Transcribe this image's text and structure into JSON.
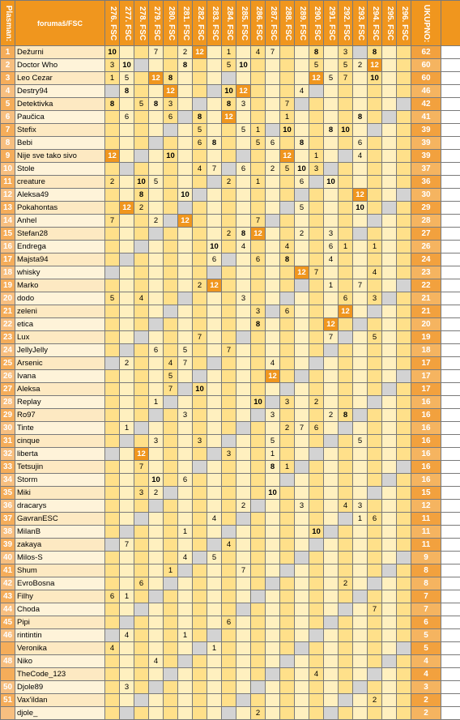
{
  "header": {
    "rank_label": "Plasman:",
    "name_label": "forumaš/FSC",
    "columns": [
      "276. FSC",
      "277. FSC",
      "278. FSC",
      "279. FSC",
      "280. FSC",
      "281. FSC",
      "282. FSC",
      "283. FSC",
      "284. FSC",
      "285. FSC",
      "286. FSC",
      "287. FSC",
      "288. FSC",
      "289. FSC",
      "290. FSC",
      "291. FSC",
      "292. FSC",
      "293. FSC",
      "294. FSC",
      "295. FSC",
      "296. FSC"
    ],
    "total_label": "UKUPNO:"
  },
  "rows": [
    {
      "rank": "1",
      "name": "Dežurni",
      "cells": [
        "10",
        "",
        "",
        "7",
        "",
        "2",
        "12",
        "",
        "1",
        "",
        "4",
        "7",
        "",
        "",
        "8",
        "",
        "3",
        "",
        "8",
        "",
        ""
      ],
      "total": "62"
    },
    {
      "rank": "2",
      "name": "Doctor Who",
      "cells": [
        "3",
        "10",
        "",
        "",
        "",
        "8",
        "",
        "",
        "5",
        "10",
        "",
        "",
        "",
        "",
        "5",
        "",
        "5",
        "2",
        "12",
        "",
        ""
      ],
      "total": "60"
    },
    {
      "rank": "3",
      "name": "Leo Cezar",
      "cells": [
        "1",
        "5",
        "",
        "12",
        "8",
        "",
        "",
        "",
        "",
        "",
        "",
        "",
        "",
        "",
        "12",
        "5",
        "7",
        "",
        "10",
        "",
        ""
      ],
      "total": "60"
    },
    {
      "rank": "4",
      "name": "Destry94",
      "cells": [
        "",
        "8",
        "",
        "",
        "12",
        "",
        "",
        "",
        "10",
        "12",
        "",
        "",
        "",
        "4",
        "",
        "",
        "",
        "",
        "",
        "",
        ""
      ],
      "total": "46"
    },
    {
      "rank": "5",
      "name": "Detektivka",
      "cells": [
        "8",
        "",
        "5",
        "8",
        "3",
        "",
        "",
        "",
        "8",
        "3",
        "",
        "",
        "7",
        "",
        "",
        "",
        "",
        "",
        "",
        "",
        ""
      ],
      "total": "42"
    },
    {
      "rank": "6",
      "name": "Paučica",
      "cells": [
        "",
        "6",
        "",
        "",
        "6",
        "",
        "8",
        "",
        "12",
        "",
        "",
        "",
        "1",
        "",
        "",
        "",
        "",
        "8",
        "",
        "",
        ""
      ],
      "total": "41"
    },
    {
      "rank": "7",
      "name": "Stefix",
      "cells": [
        "",
        "",
        "",
        "",
        "",
        "",
        "5",
        "",
        "",
        "5",
        "1",
        "",
        "10",
        "",
        "",
        "8",
        "10",
        "",
        "",
        "",
        ""
      ],
      "total": "39"
    },
    {
      "rank": "8",
      "name": "Bebi",
      "cells": [
        "",
        "",
        "",
        "",
        "",
        "",
        "6",
        "8",
        "",
        "",
        "5",
        "6",
        "",
        "8",
        "",
        "",
        "",
        "6",
        "",
        "",
        ""
      ],
      "total": "39"
    },
    {
      "rank": "9",
      "name": "Nije sve tako sivo",
      "cells": [
        "12",
        "",
        "",
        "",
        "10",
        "",
        "",
        "",
        "",
        "",
        "",
        "",
        "12",
        "",
        "1",
        "",
        "",
        "4",
        "",
        "",
        ""
      ],
      "total": "39"
    },
    {
      "rank": "10",
      "name": "Stole",
      "cells": [
        "",
        "",
        "",
        "",
        "",
        "",
        "4",
        "7",
        "",
        "6",
        "",
        "2",
        "5",
        "10",
        "3",
        "",
        "",
        "",
        "",
        "",
        ""
      ],
      "total": "37"
    },
    {
      "rank": "11",
      "name": "creature",
      "cells": [
        "2",
        "",
        "10",
        "5",
        "",
        "",
        "",
        "",
        "2",
        "",
        "1",
        "",
        "",
        "6",
        "",
        "10",
        "",
        "",
        "",
        "",
        ""
      ],
      "total": "36"
    },
    {
      "rank": "12",
      "name": "Aleksa49",
      "cells": [
        "",
        "",
        "8",
        "",
        "",
        "10",
        "",
        "",
        "",
        "",
        "",
        "",
        "",
        "",
        "",
        "",
        "",
        "12",
        "",
        "",
        ""
      ],
      "total": "30"
    },
    {
      "rank": "13",
      "name": "Pokahontas",
      "cells": [
        "",
        "12",
        "2",
        "",
        "",
        "",
        "",
        "",
        "",
        "",
        "",
        "",
        "",
        "5",
        "",
        "",
        "",
        "10",
        "",
        "",
        ""
      ],
      "total": "29"
    },
    {
      "rank": "14",
      "name": "Anhel",
      "cells": [
        "7",
        "",
        "",
        "2",
        "",
        "12",
        "",
        "",
        "",
        "",
        "7",
        "",
        "",
        "",
        "",
        "",
        "",
        "",
        "",
        "",
        ""
      ],
      "total": "28"
    },
    {
      "rank": "15",
      "name": "Stefan28",
      "cells": [
        "",
        "",
        "",
        "",
        "",
        "",
        "",
        "",
        "2",
        "8",
        "12",
        "",
        "",
        "2",
        "",
        "3",
        "",
        "",
        "",
        "",
        ""
      ],
      "total": "27"
    },
    {
      "rank": "16",
      "name": "Endrega",
      "cells": [
        "",
        "",
        "",
        "",
        "",
        "",
        "",
        "10",
        "",
        "4",
        "",
        "",
        "4",
        "",
        "",
        "6",
        "1",
        "",
        "1",
        "",
        ""
      ],
      "total": "26"
    },
    {
      "rank": "17",
      "name": "Majsta94",
      "cells": [
        "",
        "",
        "",
        "",
        "",
        "",
        "",
        "6",
        "",
        "",
        "6",
        "",
        "8",
        "",
        "",
        "4",
        "",
        "",
        "",
        "",
        ""
      ],
      "total": "24"
    },
    {
      "rank": "18",
      "name": "whisky",
      "cells": [
        "",
        "",
        "",
        "",
        "",
        "",
        "",
        "",
        "",
        "",
        "",
        "",
        "",
        "12",
        "7",
        "",
        "",
        "",
        "4",
        "",
        ""
      ],
      "total": "23"
    },
    {
      "rank": "19",
      "name": "Marko",
      "cells": [
        "",
        "",
        "",
        "",
        "",
        "",
        "2",
        "12",
        "",
        "",
        "",
        "",
        "",
        "",
        "",
        "1",
        "",
        "7",
        "",
        "",
        ""
      ],
      "total": "22"
    },
    {
      "rank": "20",
      "name": "dodo",
      "cells": [
        "5",
        "",
        "4",
        "",
        "",
        "",
        "",
        "",
        "",
        "3",
        "",
        "",
        "",
        "",
        "",
        "",
        "6",
        "",
        "3",
        "",
        ""
      ],
      "total": "21"
    },
    {
      "rank": "21",
      "name": "zeleni",
      "cells": [
        "",
        "",
        "",
        "",
        "",
        "",
        "",
        "",
        "",
        "",
        "3",
        "",
        "6",
        "",
        "",
        "",
        "12",
        "",
        "",
        "",
        ""
      ],
      "total": "21"
    },
    {
      "rank": "22",
      "name": "etica",
      "cells": [
        "",
        "",
        "",
        "",
        "",
        "",
        "",
        "",
        "",
        "",
        "8",
        "",
        "",
        "",
        "",
        "12",
        "",
        "",
        "",
        "",
        ""
      ],
      "total": "20"
    },
    {
      "rank": "23",
      "name": "Lux",
      "cells": [
        "",
        "",
        "",
        "",
        "",
        "",
        "7",
        "",
        "",
        "",
        "",
        "",
        "",
        "",
        "",
        "7",
        "",
        "",
        "5",
        "",
        ""
      ],
      "total": "19"
    },
    {
      "rank": "24",
      "name": "JellyJelly",
      "cells": [
        "",
        "",
        "",
        "6",
        "",
        "5",
        "",
        "",
        "7",
        "",
        "",
        "",
        "",
        "",
        "",
        "",
        "",
        "",
        "",
        "",
        ""
      ],
      "total": "18"
    },
    {
      "rank": "25",
      "name": "Arsenic",
      "cells": [
        "",
        "2",
        "",
        "",
        "4",
        "7",
        "",
        "",
        "",
        "",
        "",
        "4",
        "",
        "",
        "",
        "",
        "",
        "",
        "",
        "",
        ""
      ],
      "total": "17"
    },
    {
      "rank": "26",
      "name": "Ivana",
      "cells": [
        "",
        "",
        "",
        "",
        "5",
        "",
        "",
        "",
        "",
        "",
        "",
        "12",
        "",
        "",
        "",
        "",
        "",
        "",
        "",
        "",
        ""
      ],
      "total": "17"
    },
    {
      "rank": "27",
      "name": "Aleksa",
      "cells": [
        "",
        "",
        "",
        "",
        "7",
        "",
        "10",
        "",
        "",
        "",
        "",
        "",
        "",
        "",
        "",
        "",
        "",
        "",
        "",
        "",
        ""
      ],
      "total": "17"
    },
    {
      "rank": "28",
      "name": "Replay",
      "cells": [
        "",
        "",
        "",
        "1",
        "",
        "",
        "",
        "",
        "",
        "",
        "10",
        "",
        "3",
        "",
        "2",
        "",
        "",
        "",
        "",
        "",
        ""
      ],
      "total": "16"
    },
    {
      "rank": "29",
      "name": "Ro97",
      "cells": [
        "",
        "",
        "",
        "",
        "",
        "3",
        "",
        "",
        "",
        "",
        "",
        "3",
        "",
        "",
        "",
        "2",
        "8",
        "",
        "",
        "",
        ""
      ],
      "total": "16"
    },
    {
      "rank": "30",
      "name": "Tinte",
      "cells": [
        "",
        "1",
        "",
        "",
        "",
        "",
        "",
        "",
        "",
        "",
        "",
        "",
        "2",
        "7",
        "6",
        "",
        "",
        "",
        "",
        "",
        ""
      ],
      "total": "16"
    },
    {
      "rank": "31",
      "name": "cinque",
      "cells": [
        "",
        "",
        "",
        "3",
        "",
        "",
        "3",
        "",
        "",
        "",
        "",
        "5",
        "",
        "",
        "",
        "",
        "",
        "5",
        "",
        "",
        ""
      ],
      "total": "16"
    },
    {
      "rank": "32",
      "name": "liberta",
      "cells": [
        "",
        "",
        "12",
        "",
        "",
        "",
        "",
        "",
        "3",
        "",
        "",
        "1",
        "",
        "",
        "",
        "",
        "",
        "",
        "",
        "",
        ""
      ],
      "total": "16"
    },
    {
      "rank": "33",
      "name": "Tetsujin",
      "cells": [
        "",
        "",
        "7",
        "",
        "",
        "",
        "",
        "",
        "",
        "",
        "",
        "8",
        "1",
        "",
        "",
        "",
        "",
        "",
        "",
        "",
        ""
      ],
      "total": "16"
    },
    {
      "rank": "34",
      "name": "Storm",
      "cells": [
        "",
        "",
        "",
        "10",
        "",
        "6",
        "",
        "",
        "",
        "",
        "",
        "",
        "",
        "",
        "",
        "",
        "",
        "",
        "",
        "",
        ""
      ],
      "total": "16"
    },
    {
      "rank": "35",
      "name": "Miki",
      "cells": [
        "",
        "",
        "3",
        "2",
        "",
        "",
        "",
        "",
        "",
        "",
        "",
        "10",
        "",
        "",
        "",
        "",
        "",
        "",
        "",
        "",
        ""
      ],
      "total": "15"
    },
    {
      "rank": "36",
      "name": "dracarys",
      "cells": [
        "",
        "",
        "",
        "",
        "",
        "",
        "",
        "",
        "",
        "2",
        "",
        "",
        "",
        "3",
        "",
        "",
        "4",
        "3",
        "",
        "",
        ""
      ],
      "total": "12"
    },
    {
      "rank": "37",
      "name": "GavranESC",
      "cells": [
        "",
        "",
        "",
        "",
        "",
        "",
        "",
        "4",
        "",
        "",
        "",
        "",
        "",
        "",
        "",
        "",
        "",
        "1",
        "6",
        "",
        ""
      ],
      "total": "11"
    },
    {
      "rank": "38",
      "name": "MilanB",
      "cells": [
        "",
        "",
        "",
        "",
        "",
        "1",
        "",
        "",
        "",
        "",
        "",
        "",
        "",
        "",
        "10",
        "",
        "",
        "",
        "",
        "",
        ""
      ],
      "total": "11"
    },
    {
      "rank": "39",
      "name": "zakaya",
      "cells": [
        "",
        "7",
        "",
        "",
        "",
        "",
        "",
        "",
        "4",
        "",
        "",
        "",
        "",
        "",
        "",
        "",
        "",
        "",
        "",
        "",
        ""
      ],
      "total": "11"
    },
    {
      "rank": "40",
      "name": "Milos-S",
      "cells": [
        "",
        "",
        "",
        "",
        "",
        "4",
        "",
        "5",
        "",
        "",
        "",
        "",
        "",
        "",
        "",
        "",
        "",
        "",
        "",
        "",
        ""
      ],
      "total": "9"
    },
    {
      "rank": "41",
      "name": "Shum",
      "cells": [
        "",
        "",
        "",
        "",
        "1",
        "",
        "",
        "",
        "",
        "7",
        "",
        "",
        "",
        "",
        "",
        "",
        "",
        "",
        "",
        "",
        ""
      ],
      "total": "8"
    },
    {
      "rank": "42",
      "name": "EvroBosna",
      "cells": [
        "",
        "",
        "6",
        "",
        "",
        "",
        "",
        "",
        "",
        "",
        "",
        "",
        "",
        "",
        "",
        "",
        "2",
        "",
        "",
        "",
        ""
      ],
      "total": "8"
    },
    {
      "rank": "43",
      "name": "Filhy",
      "cells": [
        "6",
        "1",
        "",
        "",
        "",
        "",
        "",
        "",
        "",
        "",
        "",
        "",
        "",
        "",
        "",
        "",
        "",
        "",
        "",
        "",
        ""
      ],
      "total": "7"
    },
    {
      "rank": "44",
      "name": "Choda",
      "cells": [
        "",
        "",
        "",
        "",
        "",
        "",
        "",
        "",
        "",
        "",
        "",
        "",
        "",
        "",
        "",
        "",
        "",
        "",
        "7",
        "",
        ""
      ],
      "total": "7"
    },
    {
      "rank": "45",
      "name": "Pipi",
      "cells": [
        "",
        "",
        "",
        "",
        "",
        "",
        "",
        "",
        "6",
        "",
        "",
        "",
        "",
        "",
        "",
        "",
        "",
        "",
        "",
        "",
        ""
      ],
      "total": "6"
    },
    {
      "rank": "46",
      "name": "rintintin",
      "cells": [
        "",
        "4",
        "",
        "",
        "",
        "1",
        "",
        "",
        "",
        "",
        "",
        "",
        "",
        "",
        "",
        "",
        "",
        "",
        "",
        "",
        ""
      ],
      "total": "5"
    },
    {
      "rank": "",
      "name": "Veronika",
      "cells": [
        "4",
        "",
        "",
        "",
        "",
        "",
        "",
        "1",
        "",
        "",
        "",
        "",
        "",
        "",
        "",
        "",
        "",
        "",
        "",
        "",
        ""
      ],
      "total": "5"
    },
    {
      "rank": "48",
      "name": "Niko",
      "cells": [
        "",
        "",
        "",
        "4",
        "",
        "",
        "",
        "",
        "",
        "",
        "",
        "",
        "",
        "",
        "",
        "",
        "",
        "",
        "",
        "",
        ""
      ],
      "total": "4"
    },
    {
      "rank": "",
      "name": "TheCode_123",
      "cells": [
        "",
        "",
        "",
        "",
        "",
        "",
        "",
        "",
        "",
        "",
        "",
        "",
        "",
        "",
        "4",
        "",
        "",
        "",
        "",
        "",
        ""
      ],
      "total": "4"
    },
    {
      "rank": "50",
      "name": "Djole89",
      "cells": [
        "",
        "3",
        "",
        "",
        "",
        "",
        "",
        "",
        "",
        "",
        "",
        "",
        "",
        "",
        "",
        "",
        "",
        "",
        "",
        "",
        ""
      ],
      "total": "3"
    },
    {
      "rank": "51",
      "name": "Vax'ildan",
      "cells": [
        "",
        "",
        "",
        "",
        "",
        "",
        "",
        "",
        "",
        "",
        "",
        "",
        "",
        "",
        "",
        "",
        "",
        "",
        "2",
        "",
        ""
      ],
      "total": "2"
    },
    {
      "rank": "",
      "name": "djole_",
      "cells": [
        "",
        "",
        "",
        "",
        "",
        "",
        "",
        "",
        "",
        "",
        "2",
        "",
        "",
        "",
        "",
        "",
        "",
        "",
        "",
        "",
        ""
      ],
      "total": "2"
    }
  ]
}
